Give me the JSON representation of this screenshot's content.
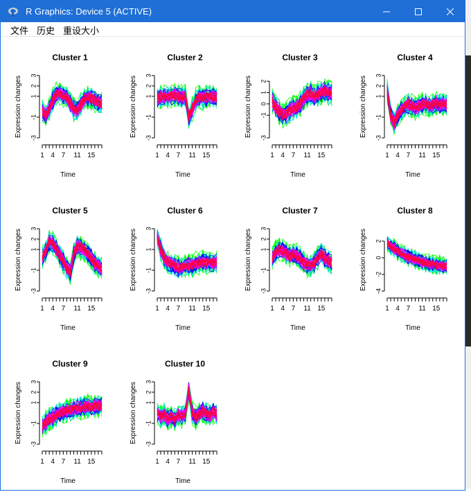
{
  "window": {
    "title": "R Graphics: Device 5 (ACTIVE)",
    "title_color": "#1f6fd6",
    "icons": {
      "app": "r-logo-icon",
      "minimize": "minimize-icon",
      "maximize": "maximize-icon",
      "close": "close-icon"
    }
  },
  "menu": {
    "items": [
      "文件",
      "历史",
      "重设大小"
    ]
  },
  "colors": {
    "palette": [
      "#00ff00",
      "#00e0e0",
      "#0000ff",
      "#ff00ff",
      "#ff0040"
    ]
  },
  "chart_data": [
    {
      "type": "line",
      "title": "Cluster 1",
      "xlabel": "Time",
      "ylabel": "Expression changes",
      "xticks": [
        "1",
        "4",
        "7",
        "11",
        "15"
      ],
      "yticks": [
        "-3",
        "-1",
        "1",
        "2",
        "3"
      ],
      "ylim": [
        -3,
        3
      ],
      "xlim": [
        1,
        18
      ],
      "x": [
        1,
        2,
        3,
        4,
        5,
        6,
        7,
        8,
        9,
        10,
        11,
        12,
        13,
        14,
        15,
        16,
        17,
        18
      ],
      "center": [
        -0.5,
        -0.8,
        -0.2,
        0.6,
        1.2,
        1.3,
        1.1,
        0.9,
        0.3,
        -0.2,
        -0.3,
        0.2,
        0.7,
        0.9,
        0.8,
        0.6,
        0.4,
        0.3
      ]
    },
    {
      "type": "line",
      "title": "Cluster 2",
      "xlabel": "Time",
      "ylabel": "Expression changes",
      "xticks": [
        "1",
        "4",
        "7",
        "11",
        "15"
      ],
      "yticks": [
        "-3",
        "-1",
        "1",
        "2",
        "3"
      ],
      "ylim": [
        -3,
        3
      ],
      "xlim": [
        1,
        18
      ],
      "x": [
        1,
        2,
        3,
        4,
        5,
        6,
        7,
        8,
        9,
        10,
        11,
        12,
        13,
        14,
        15,
        16,
        17,
        18
      ],
      "center": [
        0.8,
        1.0,
        1.0,
        0.9,
        1.0,
        1.1,
        1.0,
        0.9,
        1.0,
        -1.0,
        -0.2,
        0.6,
        0.9,
        0.8,
        0.9,
        1.0,
        0.9,
        0.8
      ]
    },
    {
      "type": "line",
      "title": "Cluster 3",
      "xlabel": "Time",
      "ylabel": "Expression changes",
      "xticks": [
        "1",
        "4",
        "7",
        "11",
        "15"
      ],
      "yticks": [
        "-3",
        "-1",
        "0",
        "1",
        "2"
      ],
      "ylim": [
        -3,
        2.5
      ],
      "xlim": [
        1,
        18
      ],
      "x": [
        1,
        2,
        3,
        4,
        5,
        6,
        7,
        8,
        9,
        10,
        11,
        12,
        13,
        14,
        15,
        16,
        17,
        18
      ],
      "center": [
        0.2,
        -0.3,
        -0.7,
        -1.0,
        -0.9,
        -0.6,
        -0.4,
        -0.3,
        0.0,
        0.5,
        0.8,
        0.9,
        0.7,
        0.8,
        1.0,
        1.1,
        1.0,
        0.9
      ]
    },
    {
      "type": "line",
      "title": "Cluster 4",
      "xlabel": "Time",
      "ylabel": "Expression changes",
      "xticks": [
        "1",
        "4",
        "7",
        "11",
        "15"
      ],
      "yticks": [
        "-3",
        "-1",
        "1",
        "2",
        "3"
      ],
      "ylim": [
        -3,
        3
      ],
      "xlim": [
        1,
        18
      ],
      "x": [
        1,
        2,
        3,
        4,
        5,
        6,
        7,
        8,
        9,
        10,
        11,
        12,
        13,
        14,
        15,
        16,
        17,
        18
      ],
      "center": [
        1.5,
        -0.8,
        -1.6,
        -0.8,
        -0.3,
        0.0,
        0.2,
        0.1,
        -0.1,
        0.0,
        0.2,
        0.3,
        0.1,
        0.2,
        0.3,
        0.2,
        0.3,
        0.2
      ]
    },
    {
      "type": "line",
      "title": "Cluster 5",
      "xlabel": "Time",
      "ylabel": "Expression changes",
      "xticks": [
        "1",
        "4",
        "7",
        "11",
        "15"
      ],
      "yticks": [
        "-3",
        "-1",
        "1",
        "2",
        "3"
      ],
      "ylim": [
        -3,
        3
      ],
      "xlim": [
        1,
        18
      ],
      "x": [
        1,
        2,
        3,
        4,
        5,
        6,
        7,
        8,
        9,
        10,
        11,
        12,
        13,
        14,
        15,
        16,
        17,
        18
      ],
      "center": [
        0.3,
        0.8,
        1.8,
        1.5,
        1.0,
        0.4,
        -0.2,
        -0.8,
        -1.2,
        0.5,
        1.3,
        1.2,
        1.0,
        0.6,
        0.2,
        -0.3,
        -0.6,
        -0.9
      ]
    },
    {
      "type": "line",
      "title": "Cluster 6",
      "xlabel": "Time",
      "ylabel": "Expression changes",
      "xticks": [
        "1",
        "4",
        "7",
        "11",
        "15"
      ],
      "yticks": [
        "-3",
        "-1",
        "1",
        "3"
      ],
      "ylim": [
        -3,
        3
      ],
      "xlim": [
        1,
        18
      ],
      "x": [
        1,
        2,
        3,
        4,
        5,
        6,
        7,
        8,
        9,
        10,
        11,
        12,
        13,
        14,
        15,
        16,
        17,
        18
      ],
      "center": [
        2.2,
        1.0,
        0.2,
        -0.2,
        -0.4,
        -0.6,
        -0.8,
        -0.7,
        -0.6,
        -0.5,
        -0.6,
        -0.4,
        -0.3,
        -0.2,
        -0.3,
        -0.2,
        -0.3,
        -0.2
      ]
    },
    {
      "type": "line",
      "title": "Cluster 7",
      "xlabel": "Time",
      "ylabel": "Expression changes",
      "xticks": [
        "1",
        "4",
        "7",
        "11",
        "15"
      ],
      "yticks": [
        "-3",
        "-1",
        "1",
        "2",
        "3"
      ],
      "ylim": [
        -3,
        3
      ],
      "xlim": [
        1,
        18
      ],
      "x": [
        1,
        2,
        3,
        4,
        5,
        6,
        7,
        8,
        9,
        10,
        11,
        12,
        13,
        14,
        15,
        16,
        17,
        18
      ],
      "center": [
        0.2,
        0.8,
        1.0,
        0.9,
        0.6,
        0.3,
        0.5,
        0.4,
        0.1,
        -0.3,
        -0.5,
        -0.6,
        -0.3,
        0.2,
        0.6,
        0.2,
        -0.1,
        -0.3
      ]
    },
    {
      "type": "line",
      "title": "Cluster 8",
      "xlabel": "Time",
      "ylabel": "Expression changes",
      "xticks": [
        "1",
        "4",
        "7",
        "11",
        "15"
      ],
      "yticks": [
        "-4",
        "-2",
        "0",
        "2"
      ],
      "ylim": [
        -4,
        3.5
      ],
      "xlim": [
        1,
        18
      ],
      "x": [
        1,
        2,
        3,
        4,
        5,
        6,
        7,
        8,
        9,
        10,
        11,
        12,
        13,
        14,
        15,
        16,
        17,
        18
      ],
      "center": [
        1.8,
        1.4,
        1.1,
        0.8,
        0.5,
        0.3,
        0.1,
        0.0,
        -0.2,
        -0.3,
        -0.5,
        -0.6,
        -0.7,
        -0.8,
        -0.9,
        -0.9,
        -1.0,
        -1.0
      ]
    },
    {
      "type": "line",
      "title": "Cluster 9",
      "xlabel": "Time",
      "ylabel": "Expression changes",
      "xticks": [
        "1",
        "4",
        "7",
        "11",
        "15"
      ],
      "yticks": [
        "-3",
        "-1",
        "1",
        "2",
        "3"
      ],
      "ylim": [
        -3,
        3
      ],
      "xlim": [
        1,
        18
      ],
      "x": [
        1,
        2,
        3,
        4,
        5,
        6,
        7,
        8,
        9,
        10,
        11,
        12,
        13,
        14,
        15,
        16,
        17,
        18
      ],
      "center": [
        -1.3,
        -0.9,
        -0.6,
        -0.4,
        -0.2,
        0.0,
        0.1,
        0.2,
        0.3,
        0.4,
        0.5,
        0.5,
        0.6,
        0.6,
        0.6,
        0.7,
        0.7,
        0.7
      ]
    },
    {
      "type": "line",
      "title": "Cluster 10",
      "xlabel": "Time",
      "ylabel": "Expression changes",
      "xticks": [
        "1",
        "4",
        "7",
        "11",
        "15"
      ],
      "yticks": [
        "-3",
        "-1",
        "1",
        "2",
        "3"
      ],
      "ylim": [
        -3,
        3
      ],
      "xlim": [
        1,
        18
      ],
      "x": [
        1,
        2,
        3,
        4,
        5,
        6,
        7,
        8,
        9,
        10,
        11,
        12,
        13,
        14,
        15,
        16,
        17,
        18
      ],
      "center": [
        0.0,
        -0.4,
        -0.2,
        -0.5,
        -0.3,
        -0.6,
        -0.2,
        -0.3,
        -0.1,
        2.2,
        0.0,
        -0.4,
        -0.1,
        0.2,
        0.0,
        -0.2,
        0.1,
        -0.1
      ]
    }
  ]
}
